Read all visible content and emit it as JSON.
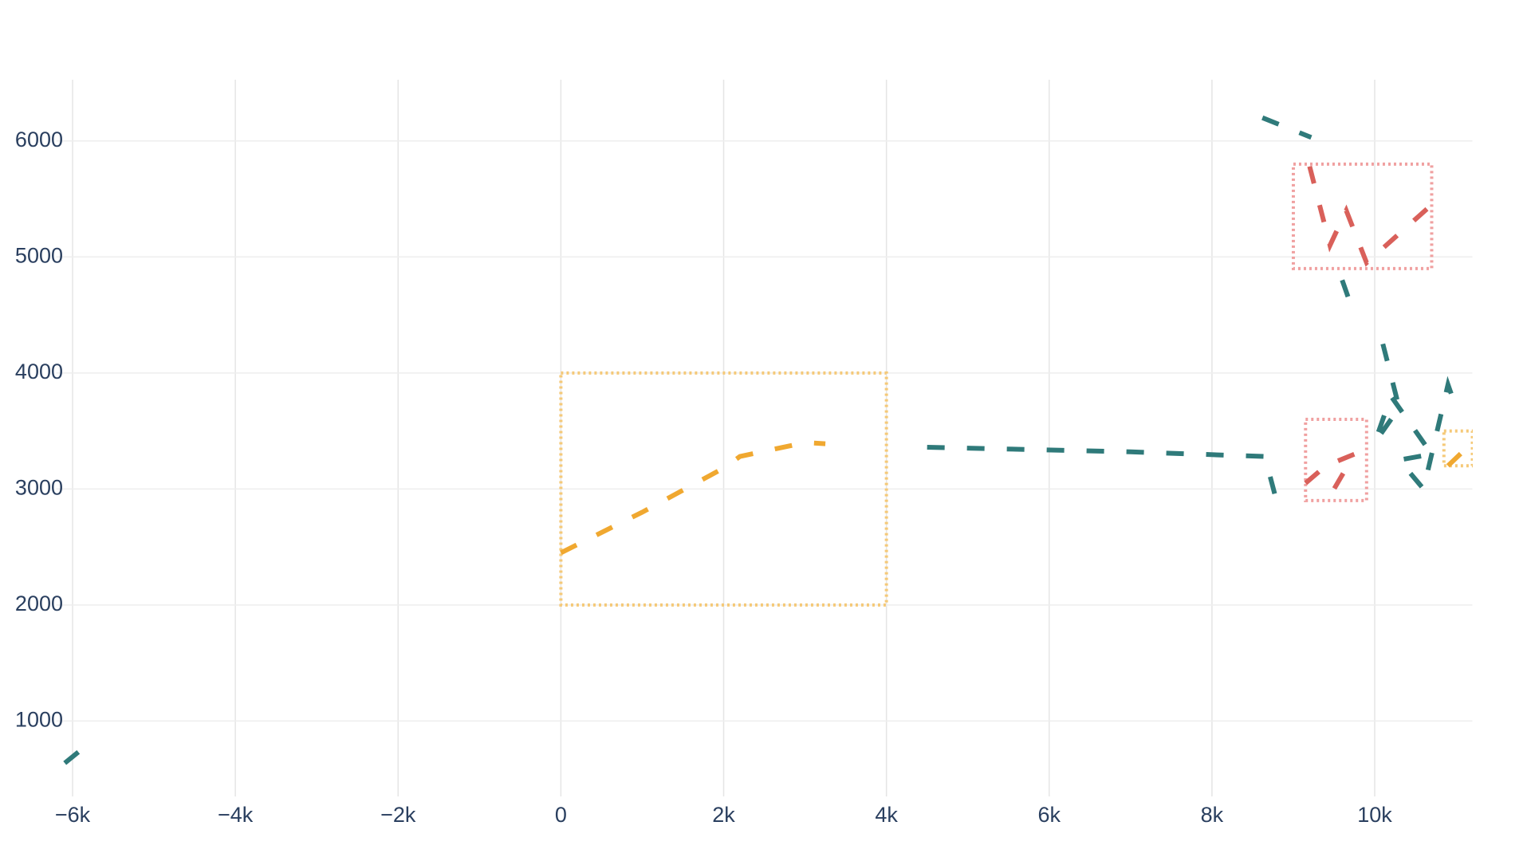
{
  "chart_data": {
    "type": "line",
    "xlim": [
      -6200,
      11200
    ],
    "ylim": [
      350,
      6500
    ],
    "xticks": [
      {
        "value": -6000,
        "label": "−6k"
      },
      {
        "value": -4000,
        "label": "−4k"
      },
      {
        "value": -2000,
        "label": "−2k"
      },
      0,
      {
        "value": 2000,
        "label": "2k"
      },
      {
        "value": 4000,
        "label": "4k"
      },
      {
        "value": 6000,
        "label": "6k"
      },
      {
        "value": 8000,
        "label": "8k"
      },
      {
        "value": 10000,
        "label": "10k"
      }
    ],
    "yticks": [
      1000,
      2000,
      3000,
      4000,
      5000,
      6000
    ],
    "grid": true,
    "series": [
      {
        "color": "#2f7a7a",
        "x": [
          -6096,
          -5771,
          null,
          4500,
          7000,
          8650,
          8800,
          null,
          8620,
          9220,
          null,
          9600,
          9700,
          null,
          10100,
          10300,
          10000,
          10200,
          10400,
          10700,
          10300,
          10600,
          10900,
          11000
        ],
        "values": [
          637,
          823,
          null,
          3360,
          3320,
          3280,
          2880,
          null,
          6200,
          6030,
          null,
          4800,
          4600,
          null,
          4250,
          3700,
          3400,
          3800,
          3600,
          3300,
          3250,
          3000,
          3900,
          3700
        ]
      },
      {
        "color": "#d9605a",
        "x": [
          9200,
          9450,
          9650,
          9900,
          10700,
          null,
          9150,
          9400,
          9750,
          9500
        ],
        "values": [
          5780,
          5100,
          5400,
          4950,
          5450,
          null,
          3050,
          3200,
          3300,
          3000
        ]
      },
      {
        "color": "#f0a830",
        "x": [
          0,
          1000,
          2000,
          2200,
          3000,
          3250,
          null,
          10900,
          11200
        ],
        "values": [
          2450,
          2800,
          3180,
          3280,
          3400,
          3390,
          null,
          3200,
          3400
        ]
      }
    ],
    "shapes": [
      {
        "x0": 0,
        "x1": 4000,
        "y0": 2000,
        "y1": 4000,
        "color": "#f5c978"
      },
      {
        "x0": 9000,
        "x1": 10700,
        "y0": 4900,
        "y1": 5800,
        "color": "#f0a0a0"
      },
      {
        "x0": 9150,
        "x1": 9900,
        "y0": 2900,
        "y1": 3600,
        "color": "#f0a0a0"
      },
      {
        "x0": 10850,
        "x1": 11200,
        "y0": 3200,
        "y1": 3500,
        "color": "#f5c978"
      }
    ]
  }
}
